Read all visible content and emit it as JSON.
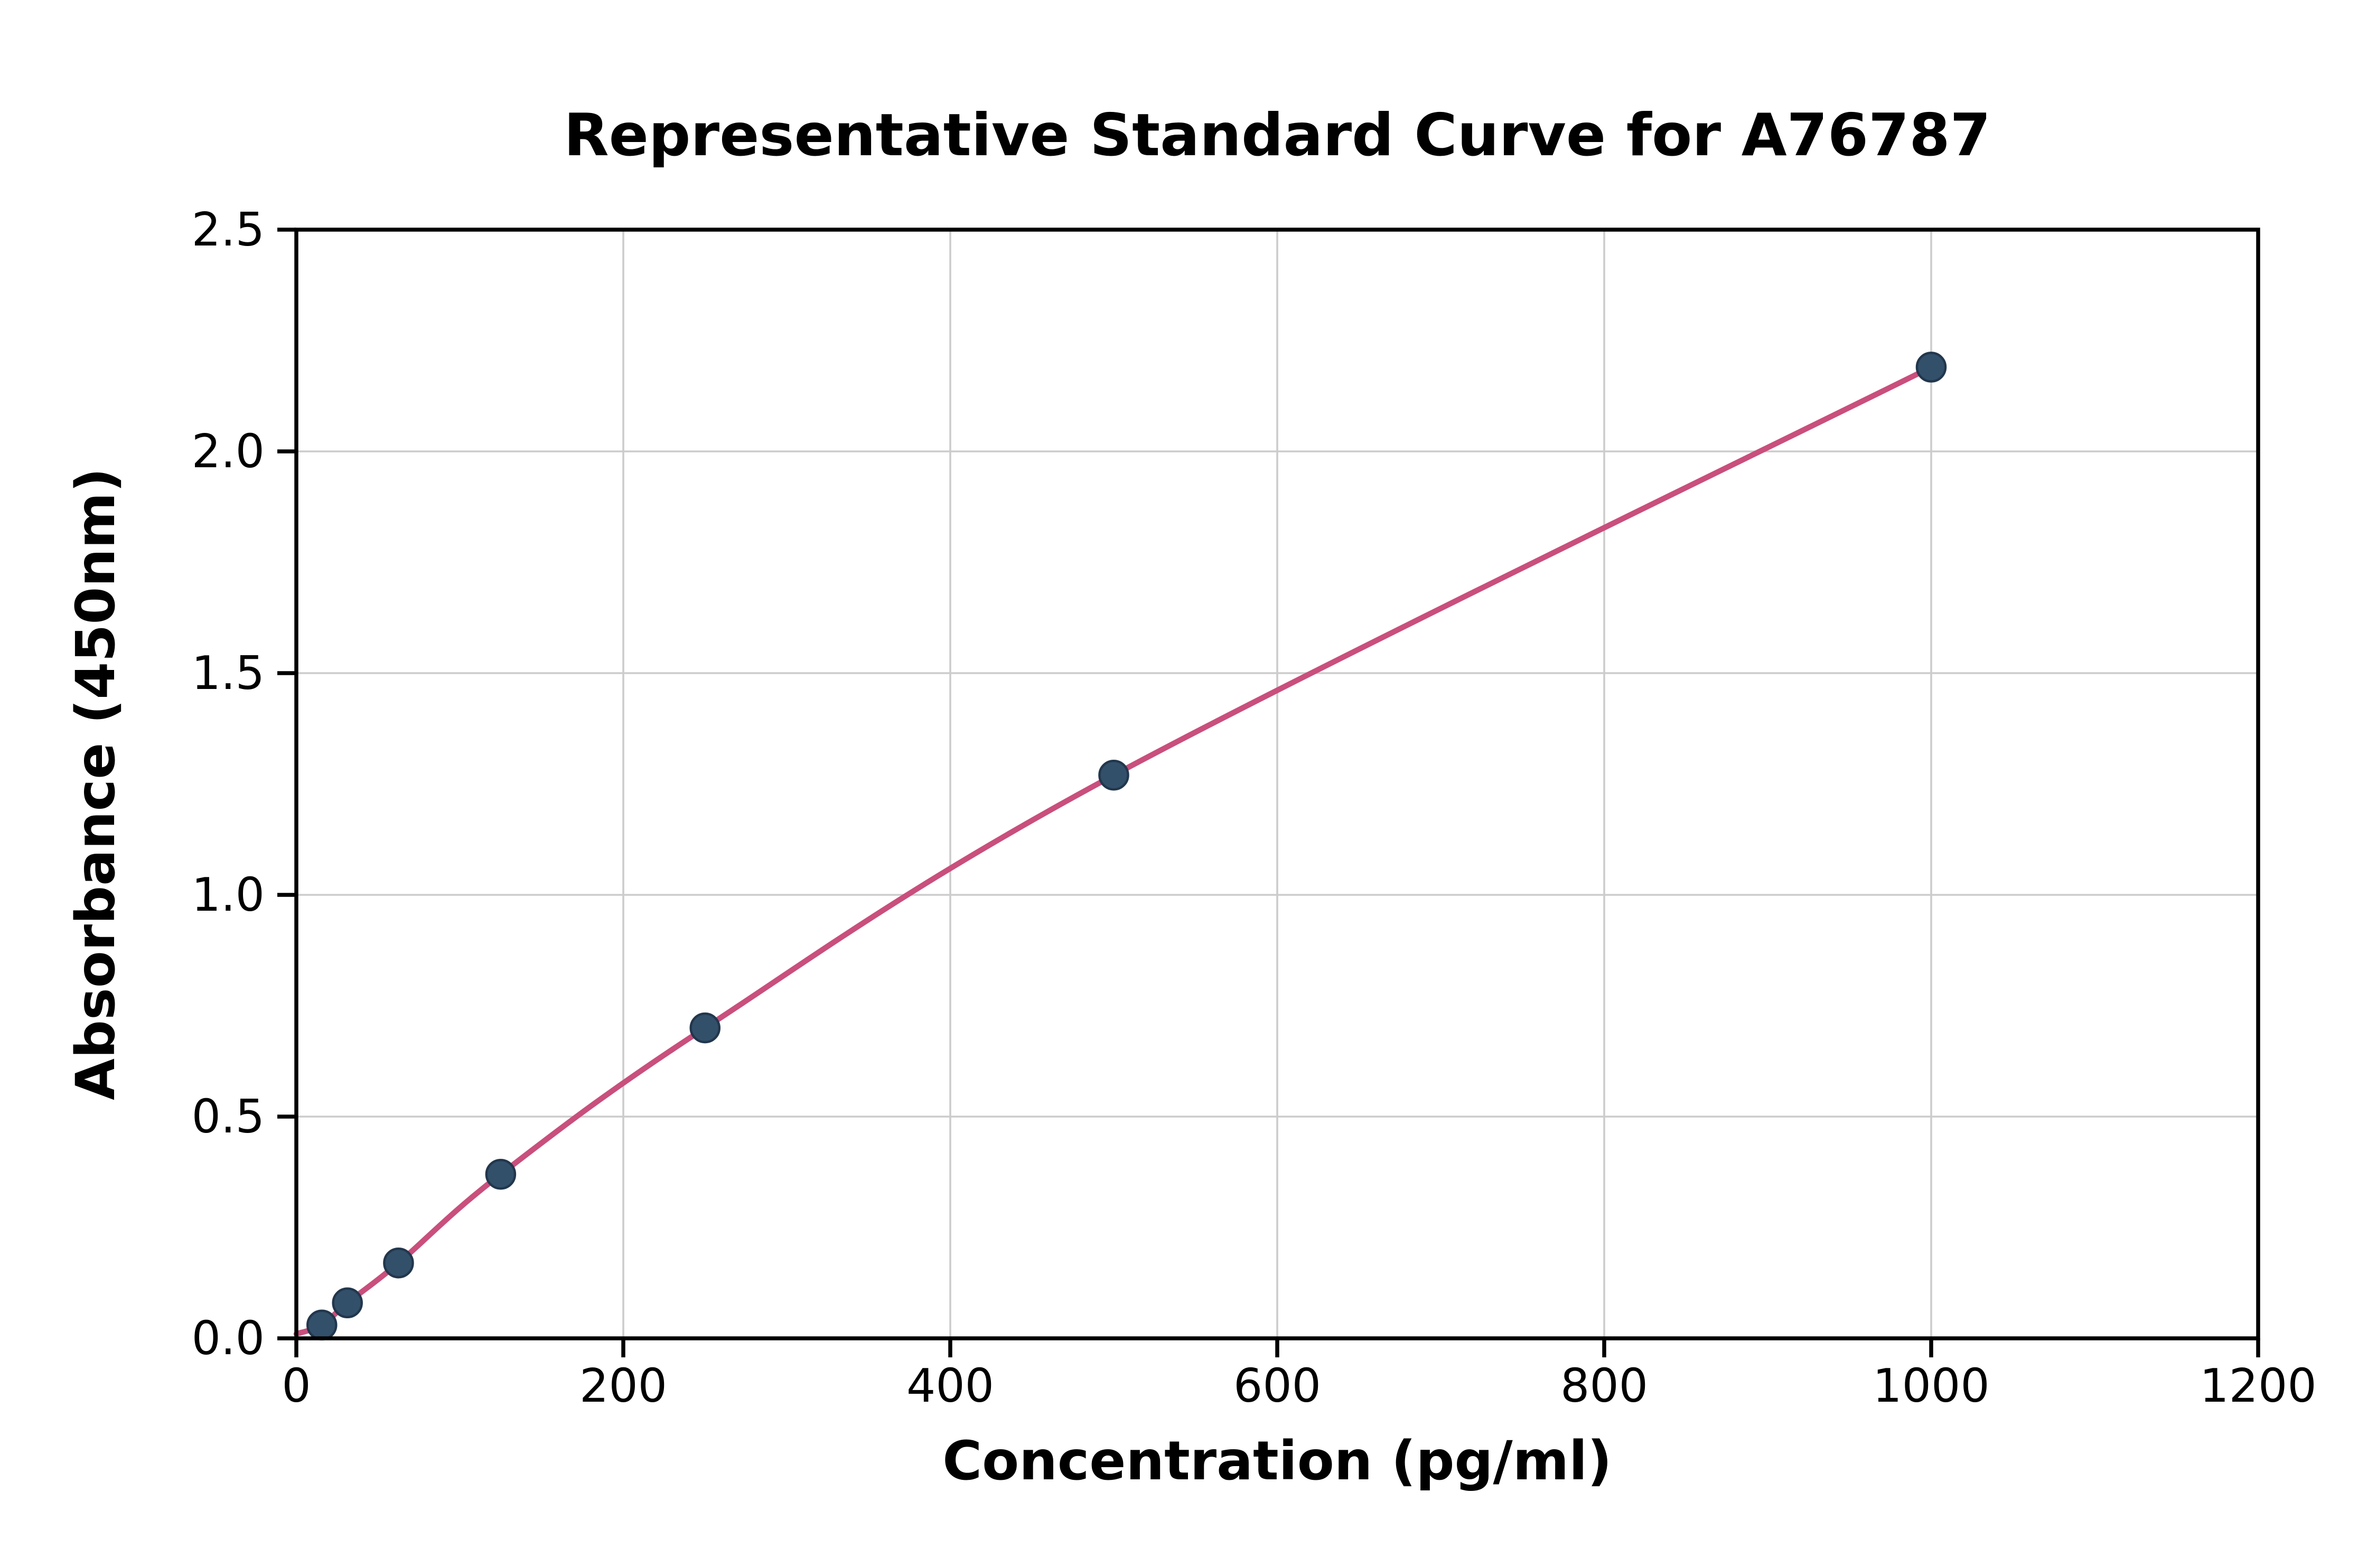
{
  "chart_data": {
    "type": "scatter",
    "title": "Representative Standard Curve for A76787",
    "xlabel": "Concentration (pg/ml)",
    "ylabel": "Absorbance (450nm)",
    "xlim": [
      0,
      1200
    ],
    "ylim": [
      0,
      2.5
    ],
    "x_ticks": [
      0,
      200,
      400,
      600,
      800,
      1000,
      1200
    ],
    "x_tick_labels": [
      "0",
      "200",
      "400",
      "600",
      "800",
      "1000",
      "1200"
    ],
    "y_ticks": [
      0,
      0.5,
      1.0,
      1.5,
      2.0,
      2.5
    ],
    "y_tick_labels": [
      "0.0",
      "0.5",
      "1.0",
      "1.5",
      "2.0",
      "2.5"
    ],
    "grid": true,
    "legend": "none",
    "series": [
      {
        "name": "fit-curve",
        "type": "line",
        "color": "#c94f7c",
        "x": [
          0,
          15.6,
          31.25,
          62.5,
          125,
          250,
          500,
          1000
        ],
        "y": [
          0.01,
          0.03,
          0.08,
          0.17,
          0.37,
          0.7,
          1.27,
          2.19
        ]
      },
      {
        "name": "standard-points",
        "type": "scatter",
        "color": "#33506a",
        "x": [
          15.6,
          31.25,
          62.5,
          125,
          250,
          500,
          1000
        ],
        "y": [
          0.03,
          0.08,
          0.17,
          0.37,
          0.7,
          1.27,
          2.19
        ]
      }
    ],
    "colors": {
      "curve": "#c94f7c",
      "point": "#33506a",
      "point_stroke": "#22374d",
      "grid": "#cccccc",
      "spine": "#000000",
      "background": "#ffffff"
    }
  }
}
